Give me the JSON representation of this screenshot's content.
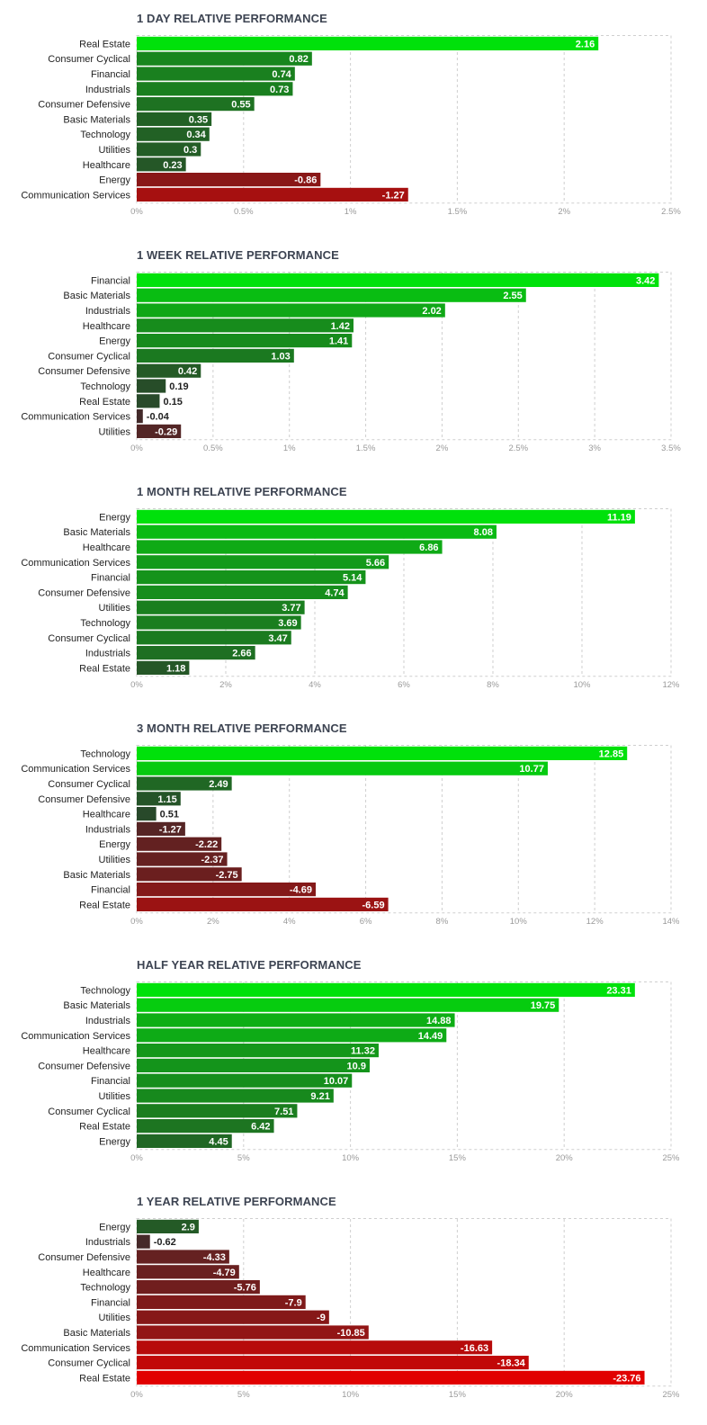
{
  "colors": {
    "pos_bright": "#00e10b",
    "pos_dark": "#2b3f2c",
    "neg_bright": "#e10000",
    "neg_dark": "#3f2b2b",
    "grid": "#cfcfcf",
    "tick_text": "#9a9a9a",
    "title_text": "#3d4452"
  },
  "chart_data": [
    {
      "type": "bar",
      "orientation": "horizontal",
      "title": "1 DAY RELATIVE PERFORMANCE",
      "categories": [
        "Real Estate",
        "Consumer Cyclical",
        "Financial",
        "Industrials",
        "Consumer Defensive",
        "Basic Materials",
        "Technology",
        "Utilities",
        "Healthcare",
        "Energy",
        "Communication Services"
      ],
      "values": [
        2.16,
        0.82,
        0.74,
        0.73,
        0.55,
        0.35,
        0.34,
        0.3,
        0.23,
        -0.86,
        -1.27
      ],
      "value_labels": [
        "2.16",
        "0.82",
        "0.74",
        "0.73",
        "0.55",
        "0.35",
        "0.34",
        "0.3",
        "0.23",
        "-0.86",
        "-1.27"
      ],
      "ticks": [
        0,
        0.5,
        1,
        1.5,
        2,
        2.5
      ],
      "tick_labels": [
        "0%",
        "0.5%",
        "1%",
        "1.5%",
        "2%",
        "2.5%"
      ],
      "xlim": [
        0,
        2.5
      ],
      "xlabel": "",
      "ylabel": "",
      "grid": true
    },
    {
      "type": "bar",
      "orientation": "horizontal",
      "title": "1 WEEK RELATIVE PERFORMANCE",
      "categories": [
        "Financial",
        "Basic Materials",
        "Industrials",
        "Healthcare",
        "Energy",
        "Consumer Cyclical",
        "Consumer Defensive",
        "Technology",
        "Real Estate",
        "Communication Services",
        "Utilities"
      ],
      "values": [
        3.42,
        2.55,
        2.02,
        1.42,
        1.41,
        1.03,
        0.42,
        0.19,
        0.15,
        -0.04,
        -0.29
      ],
      "value_labels": [
        "3.42",
        "2.55",
        "2.02",
        "1.42",
        "1.41",
        "1.03",
        "0.42",
        "0.19",
        "0.15",
        "-0.04",
        "-0.29"
      ],
      "ticks": [
        0,
        0.5,
        1,
        1.5,
        2,
        2.5,
        3,
        3.5
      ],
      "tick_labels": [
        "0%",
        "0.5%",
        "1%",
        "1.5%",
        "2%",
        "2.5%",
        "3%",
        "3.5%"
      ],
      "xlim": [
        0,
        3.5
      ],
      "xlabel": "",
      "ylabel": "",
      "grid": true
    },
    {
      "type": "bar",
      "orientation": "horizontal",
      "title": "1 MONTH RELATIVE PERFORMANCE",
      "categories": [
        "Energy",
        "Basic Materials",
        "Healthcare",
        "Communication Services",
        "Financial",
        "Consumer Defensive",
        "Utilities",
        "Technology",
        "Consumer Cyclical",
        "Industrials",
        "Real Estate"
      ],
      "values": [
        11.19,
        8.08,
        6.86,
        5.66,
        5.14,
        4.74,
        3.77,
        3.69,
        3.47,
        2.66,
        1.18
      ],
      "value_labels": [
        "11.19",
        "8.08",
        "6.86",
        "5.66",
        "5.14",
        "4.74",
        "3.77",
        "3.69",
        "3.47",
        "2.66",
        "1.18"
      ],
      "ticks": [
        0,
        2,
        4,
        6,
        8,
        10,
        12
      ],
      "tick_labels": [
        "0%",
        "2%",
        "4%",
        "6%",
        "8%",
        "10%",
        "12%"
      ],
      "xlim": [
        0,
        12
      ],
      "xlabel": "",
      "ylabel": "",
      "grid": true
    },
    {
      "type": "bar",
      "orientation": "horizontal",
      "title": "3 MONTH RELATIVE PERFORMANCE",
      "categories": [
        "Technology",
        "Communication Services",
        "Consumer Cyclical",
        "Consumer Defensive",
        "Healthcare",
        "Industrials",
        "Energy",
        "Utilities",
        "Basic Materials",
        "Financial",
        "Real Estate"
      ],
      "values": [
        12.85,
        10.77,
        2.49,
        1.15,
        0.51,
        -1.27,
        -2.22,
        -2.37,
        -2.75,
        -4.69,
        -6.59
      ],
      "value_labels": [
        "12.85",
        "10.77",
        "2.49",
        "1.15",
        "0.51",
        "-1.27",
        "-2.22",
        "-2.37",
        "-2.75",
        "-4.69",
        "-6.59"
      ],
      "ticks": [
        0,
        2,
        4,
        6,
        8,
        10,
        12,
        14
      ],
      "tick_labels": [
        "0%",
        "2%",
        "4%",
        "6%",
        "8%",
        "10%",
        "12%",
        "14%"
      ],
      "xlim": [
        0,
        14
      ],
      "xlabel": "",
      "ylabel": "",
      "grid": true
    },
    {
      "type": "bar",
      "orientation": "horizontal",
      "title": "HALF YEAR RELATIVE PERFORMANCE",
      "categories": [
        "Technology",
        "Basic Materials",
        "Industrials",
        "Communication Services",
        "Healthcare",
        "Consumer Defensive",
        "Financial",
        "Utilities",
        "Consumer Cyclical",
        "Real Estate",
        "Energy"
      ],
      "values": [
        23.31,
        19.75,
        14.88,
        14.49,
        11.32,
        10.9,
        10.07,
        9.21,
        7.51,
        6.42,
        4.45
      ],
      "value_labels": [
        "23.31",
        "19.75",
        "14.88",
        "14.49",
        "11.32",
        "10.9",
        "10.07",
        "9.21",
        "7.51",
        "6.42",
        "4.45"
      ],
      "ticks": [
        0,
        5,
        10,
        15,
        20,
        25
      ],
      "tick_labels": [
        "0%",
        "5%",
        "10%",
        "15%",
        "20%",
        "25%"
      ],
      "xlim": [
        0,
        25
      ],
      "xlabel": "",
      "ylabel": "",
      "grid": true
    },
    {
      "type": "bar",
      "orientation": "horizontal",
      "title": "1 YEAR RELATIVE PERFORMANCE",
      "categories": [
        "Energy",
        "Industrials",
        "Consumer Defensive",
        "Healthcare",
        "Technology",
        "Financial",
        "Utilities",
        "Basic Materials",
        "Communication Services",
        "Consumer Cyclical",
        "Real Estate"
      ],
      "values": [
        2.9,
        -0.62,
        -4.33,
        -4.79,
        -5.76,
        -7.9,
        -9,
        -10.85,
        -16.63,
        -18.34,
        -23.76
      ],
      "value_labels": [
        "2.9",
        "-0.62",
        "-4.33",
        "-4.79",
        "-5.76",
        "-7.9",
        "-9",
        "-10.85",
        "-16.63",
        "-18.34",
        "-23.76"
      ],
      "ticks": [
        0,
        5,
        10,
        15,
        20,
        25
      ],
      "tick_labels": [
        "0%",
        "5%",
        "10%",
        "15%",
        "20%",
        "25%"
      ],
      "xlim": [
        0,
        25
      ],
      "xlabel": "",
      "ylabel": "",
      "grid": true
    }
  ]
}
